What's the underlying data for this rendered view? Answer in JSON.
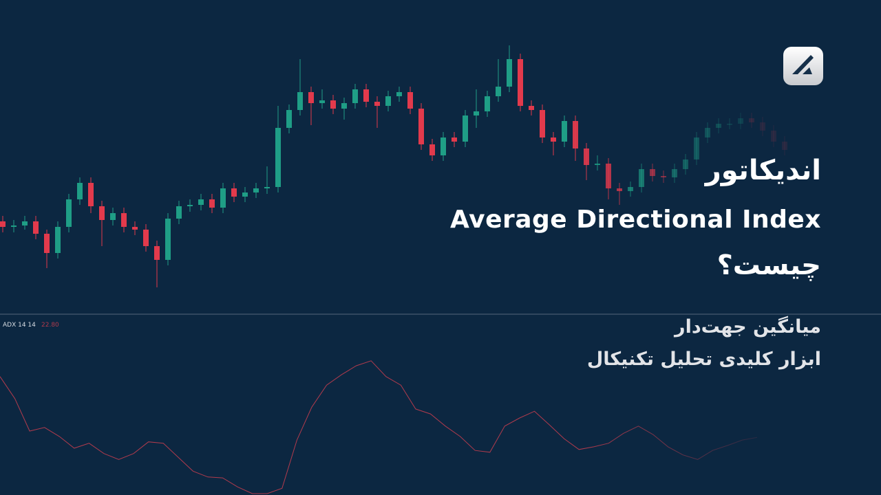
{
  "headline": {
    "line1": "اندیکاتور",
    "line2": "Average Directional Index",
    "line3": "چیست؟"
  },
  "subtitle": {
    "line1": "میانگین جهت‌دار",
    "line2": "ابزار کلیدی تحلیل تکنیکال"
  },
  "chart_data": [
    {
      "type": "candlestick",
      "up_color": "#1f9e86",
      "down_color": "#e23a4c",
      "ylim": [
        0,
        100
      ],
      "open": [
        32,
        30,
        30.5,
        32,
        27.5,
        20.5,
        30,
        40,
        46,
        37.5,
        32.5,
        35,
        30,
        29,
        23,
        18,
        33,
        37.5,
        38,
        40,
        37,
        44,
        41,
        42.5,
        44,
        44.5,
        66,
        72.5,
        79,
        75,
        76,
        73,
        75,
        80,
        75.5,
        74,
        77.5,
        79,
        73,
        60,
        56,
        62.5,
        61,
        70.5,
        72,
        77.5,
        81,
        91,
        74,
        72.5,
        62.5,
        61,
        68.5,
        58.5,
        52.5,
        53,
        44,
        43,
        44.5,
        51,
        48.5,
        48,
        51,
        54.5,
        62.5,
        66,
        67.5,
        67.5,
        69.5,
        68,
        65,
        61
      ],
      "high": [
        34,
        32.5,
        34,
        34,
        29,
        32,
        42,
        48,
        48,
        39.5,
        37,
        37,
        32,
        31,
        25,
        35,
        39.5,
        40,
        42,
        42,
        46,
        46,
        44.5,
        46,
        52,
        74,
        74.5,
        91,
        81,
        80,
        78,
        77,
        82,
        82,
        77.5,
        79.5,
        81,
        81,
        75,
        62,
        64.5,
        64.5,
        72.5,
        80,
        79.5,
        91,
        96,
        93,
        76,
        74.5,
        64.5,
        70.5,
        70.5,
        60.5,
        56,
        55,
        46,
        46.5,
        53,
        53,
        50.5,
        53,
        56.5,
        64.5,
        68,
        69.5,
        69.5,
        71.5,
        71.5,
        70,
        67,
        63
      ],
      "low": [
        28,
        28,
        29,
        25.5,
        15,
        18.5,
        28,
        38,
        35,
        23,
        30.5,
        28,
        27,
        21,
        8,
        16,
        31,
        35.5,
        36,
        35,
        35,
        39,
        39,
        40.5,
        42,
        42.5,
        64,
        70.5,
        67,
        73,
        71,
        69,
        73,
        73.5,
        66,
        72,
        75.5,
        71,
        58,
        54,
        54,
        59,
        59,
        66,
        70,
        75.5,
        79,
        72,
        70.5,
        60.5,
        56,
        59,
        54,
        47,
        50.5,
        40,
        38,
        41,
        42.5,
        46.5,
        46,
        46,
        49,
        52.5,
        60.5,
        64,
        65.5,
        65.5,
        66,
        63,
        59,
        56
      ],
      "close": [
        30,
        30.5,
        32,
        27.5,
        20.5,
        30,
        40,
        46,
        37.5,
        32.5,
        35,
        30,
        29,
        23,
        18,
        33,
        37.5,
        38,
        40,
        37,
        44,
        41,
        42.5,
        44,
        44.5,
        66,
        72.5,
        79,
        75,
        76,
        73,
        75,
        80,
        75.5,
        74,
        77.5,
        79,
        73,
        60,
        56,
        62.5,
        61,
        70.5,
        72,
        77.5,
        81,
        91,
        74,
        72.5,
        62.5,
        61,
        68.5,
        58.5,
        52.5,
        53,
        44,
        43,
        44.5,
        51,
        48.5,
        48,
        51,
        54.5,
        62.5,
        66,
        67.5,
        67.5,
        69.5,
        68,
        65,
        61,
        58
      ]
    },
    {
      "type": "line",
      "title": "ADX 14 14",
      "color": "#b03a4c",
      "ylim": [
        10,
        50
      ],
      "values": [
        36.3,
        31.4,
        24.2,
        25.0,
        23.0,
        20.4,
        21.5,
        19.2,
        17.9,
        19.2,
        21.8,
        21.5,
        18.4,
        15.3,
        14.0,
        13.8,
        11.8,
        10.3,
        10.3,
        11.5,
        22.2,
        29.5,
        34.4,
        36.7,
        38.7,
        39.8,
        36.3,
        34.4,
        29.1,
        28.0,
        25.3,
        23.0,
        19.9,
        19.5,
        25.3,
        27.1,
        28.6,
        25.6,
        22.5,
        20.1,
        20.7,
        21.5,
        23.7,
        25.3,
        23.4,
        20.7,
        18.9,
        17.9,
        19.9,
        21.0,
        22.2,
        22.8
      ],
      "value_labels": [
        null,
        null,
        null,
        null,
        null,
        null,
        null,
        null,
        null,
        null,
        null,
        null,
        null,
        null,
        null,
        null,
        null,
        null,
        null,
        null,
        null,
        null,
        null,
        null,
        null,
        null,
        null,
        null,
        null,
        null,
        null,
        null,
        null,
        null,
        null,
        null,
        null,
        null,
        null,
        null,
        null,
        null,
        null,
        null,
        null,
        null,
        null,
        null,
        null,
        null,
        null,
        "22.80"
      ]
    }
  ]
}
